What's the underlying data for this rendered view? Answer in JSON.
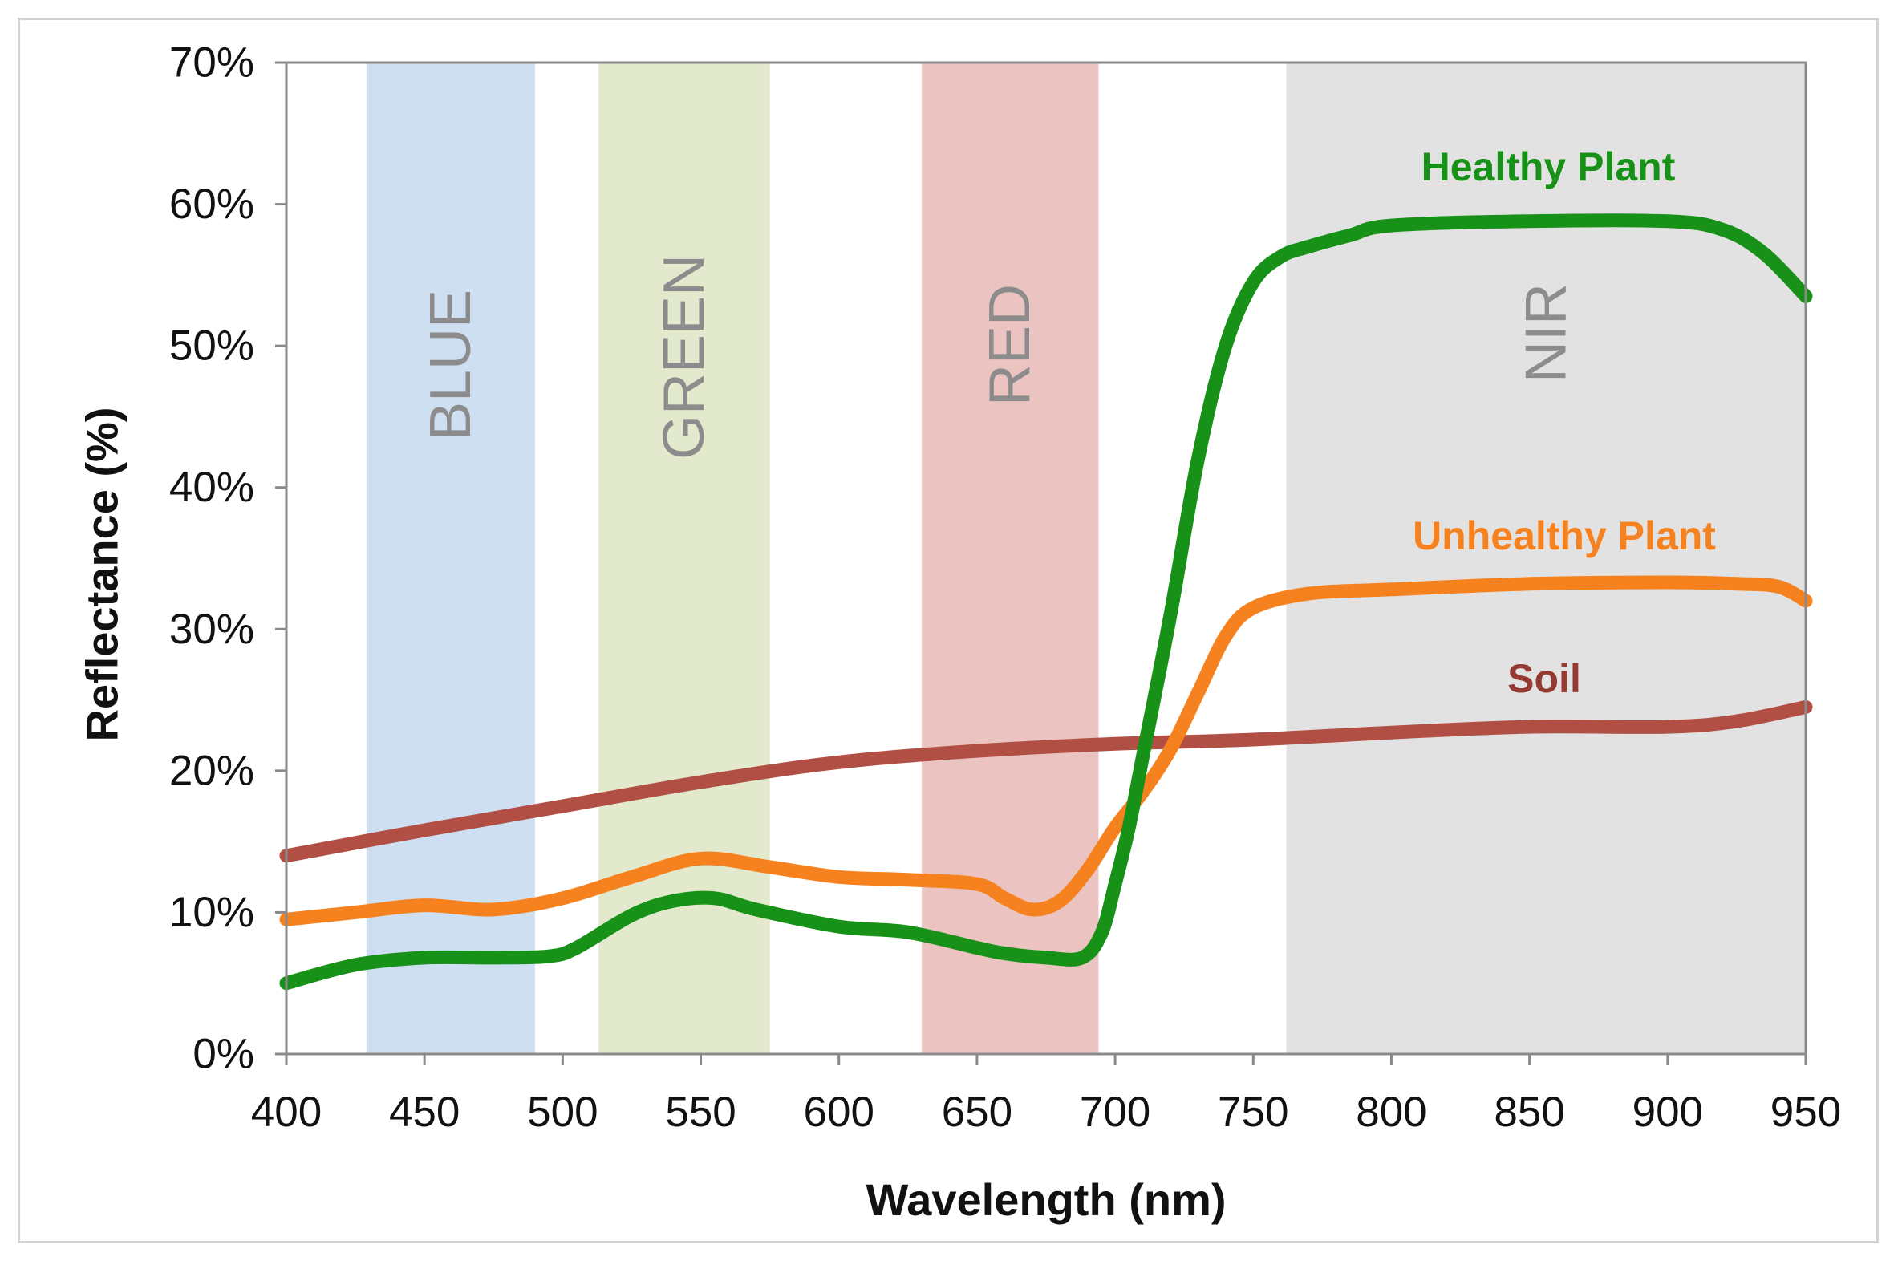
{
  "chart_data": {
    "type": "line",
    "title": "",
    "xlabel": "Wavelength (nm)",
    "ylabel": "Reflectance (%)",
    "xlim": [
      400,
      950
    ],
    "ylim": [
      0,
      70
    ],
    "x_ticks": [
      400,
      450,
      500,
      550,
      600,
      650,
      700,
      750,
      800,
      850,
      900,
      950
    ],
    "x_tick_labels": [
      "400",
      "450",
      "500",
      "550",
      "600",
      "650",
      "700",
      "750",
      "800",
      "850",
      "900",
      "950"
    ],
    "y_ticks": [
      0,
      10,
      20,
      30,
      40,
      50,
      60,
      70
    ],
    "y_tick_labels": [
      "0%",
      "10%",
      "20%",
      "30%",
      "40%",
      "50%",
      "60%",
      "70%"
    ],
    "bands": [
      {
        "label": "BLUE",
        "from": 429,
        "to": 490,
        "color": "#cfdff2"
      },
      {
        "label": "GREEN",
        "from": 513,
        "to": 575,
        "color": "#e3e9cc"
      },
      {
        "label": "RED",
        "from": 630,
        "to": 694,
        "color": "#ebc4c2"
      },
      {
        "label": "NIR",
        "from": 762,
        "to": 950,
        "color": "#e2e2e2"
      }
    ],
    "series": [
      {
        "name": "Soil",
        "color": "#b24f45",
        "x": [
          400,
          450,
          500,
          550,
          600,
          650,
          700,
          750,
          800,
          850,
          900,
          925,
          950
        ],
        "values": [
          14.0,
          15.8,
          17.5,
          19.2,
          20.6,
          21.4,
          21.9,
          22.2,
          22.7,
          23.1,
          23.1,
          23.5,
          24.5
        ]
      },
      {
        "name": "Unhealthy Plant",
        "color": "#f5821f",
        "x": [
          400,
          425,
          450,
          475,
          500,
          525,
          550,
          575,
          600,
          625,
          650,
          660,
          670,
          680,
          690,
          700,
          710,
          720,
          730,
          740,
          750,
          770,
          800,
          850,
          900,
          925,
          940,
          950
        ],
        "values": [
          9.5,
          10.0,
          10.5,
          10.2,
          11.0,
          12.5,
          13.8,
          13.2,
          12.5,
          12.3,
          12.0,
          11.0,
          10.2,
          10.8,
          13.0,
          16.0,
          18.5,
          21.5,
          25.5,
          29.5,
          31.5,
          32.5,
          32.8,
          33.2,
          33.3,
          33.2,
          33.0,
          32.0
        ]
      },
      {
        "name": "Healthy Plant",
        "color": "#179117",
        "x": [
          400,
          425,
          450,
          475,
          495,
          505,
          525,
          540,
          555,
          570,
          600,
          625,
          650,
          660,
          675,
          688,
          695,
          700,
          705,
          710,
          720,
          730,
          740,
          750,
          760,
          770,
          785,
          800,
          850,
          900,
          920,
          935,
          950
        ],
        "values": [
          5.0,
          6.3,
          6.8,
          6.8,
          6.9,
          7.5,
          9.8,
          10.8,
          11.0,
          10.2,
          9.0,
          8.6,
          7.5,
          7.1,
          6.8,
          6.8,
          8.5,
          12.0,
          16.0,
          21.0,
          31.0,
          42.0,
          50.0,
          54.5,
          56.3,
          57.0,
          57.8,
          58.5,
          58.8,
          58.8,
          58.2,
          56.5,
          53.5
        ]
      }
    ],
    "series_labels": [
      {
        "text": "Healthy Plant",
        "color": "#179117"
      },
      {
        "text": "Unhealthy Plant",
        "color": "#f5821f"
      },
      {
        "text": "Soil",
        "color": "#943a32"
      }
    ]
  }
}
